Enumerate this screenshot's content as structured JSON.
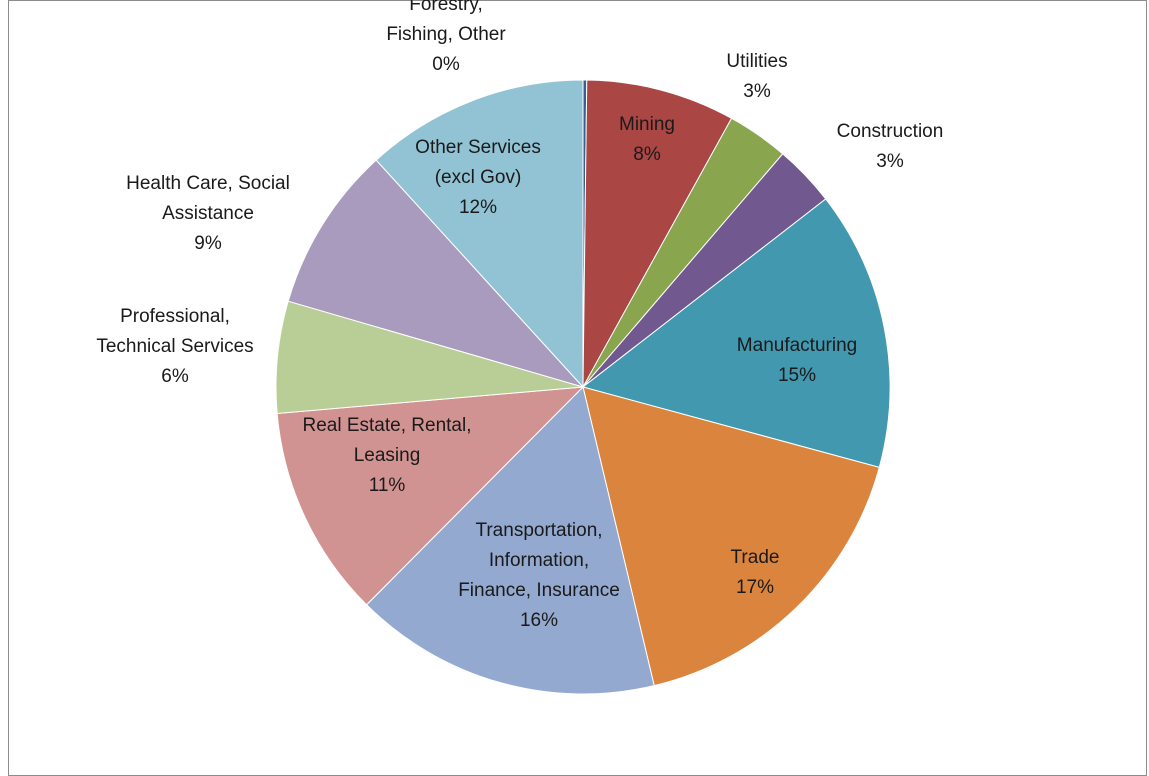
{
  "chart_data": {
    "type": "pie",
    "slices": [
      {
        "label_lines": [
          "Forestry,",
          "Fishing, Other",
          "0%"
        ],
        "value": 0.2,
        "color": "#3a5f8f"
      },
      {
        "label_lines": [
          "Mining",
          "8%"
        ],
        "value": 8,
        "color": "#aa4643"
      },
      {
        "label_lines": [
          "Utilities",
          "3%"
        ],
        "value": 3.3,
        "color": "#89a54e"
      },
      {
        "label_lines": [
          "Construction",
          "3%"
        ],
        "value": 3.3,
        "color": "#71588f"
      },
      {
        "label_lines": [
          "Manufacturing",
          "15%"
        ],
        "value": 15,
        "color": "#4198af"
      },
      {
        "label_lines": [
          "Trade",
          "17%"
        ],
        "value": 17.4,
        "color": "#db843d"
      },
      {
        "label_lines": [
          "Transportation,",
          "Information,",
          "Finance, Insurance",
          "16%"
        ],
        "value": 16.5,
        "color": "#93a9cf"
      },
      {
        "label_lines": [
          "Real Estate,  Rental,",
          "Leasing",
          "11%"
        ],
        "value": 11.4,
        "color": "#d19392"
      },
      {
        "label_lines": [
          "Professional,",
          "Technical Services",
          "6%"
        ],
        "value": 6,
        "color": "#b9cd96"
      },
      {
        "label_lines": [
          "Health Care, Social",
          "Assistance",
          "9%"
        ],
        "value": 8.9,
        "color": "#a99bbd"
      },
      {
        "label_lines": [
          "Other Services",
          "(excl Gov)",
          "12%"
        ],
        "value": 12,
        "color": "#92c3d4"
      }
    ]
  }
}
